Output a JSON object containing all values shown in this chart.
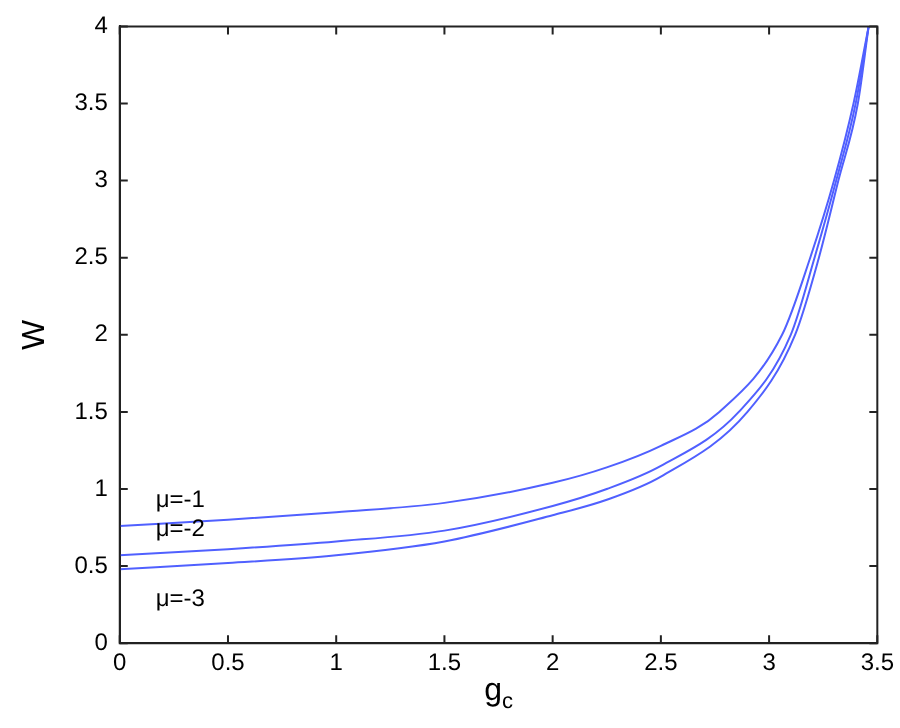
{
  "chart_data": {
    "type": "line",
    "xlabel": "g$_{c}$",
    "ylabel": "W",
    "series": [
      {
        "name": "μ=-1",
        "color": "#5060ff",
        "x": [
          0,
          0.5,
          1,
          1.5,
          2,
          2.25,
          2.5,
          2.77,
          3.06,
          3.19,
          3.3,
          3.39,
          3.46
        ],
        "values": [
          0.76,
          0.8,
          0.85,
          0.91,
          1.04,
          1.14,
          1.28,
          1.5,
          2,
          2.5,
          3,
          3.5,
          4
        ]
      },
      {
        "name": "μ=-2",
        "color": "#5060ff",
        "x": [
          0,
          0.5,
          1,
          1.5,
          2,
          2.25,
          2.5,
          2.86,
          3.1,
          3.21,
          3.31,
          3.4,
          3.46
        ],
        "values": [
          0.57,
          0.61,
          0.66,
          0.73,
          0.89,
          1.0,
          1.15,
          1.5,
          2,
          2.5,
          3,
          3.5,
          4
        ]
      },
      {
        "name": "μ=-3",
        "color": "#5060ff",
        "x": [
          0,
          0.5,
          1,
          1.5,
          2,
          2.25,
          2.5,
          2.9,
          3.12,
          3.23,
          3.32,
          3.41,
          3.46
        ],
        "values": [
          0.48,
          0.52,
          0.57,
          0.66,
          0.83,
          0.93,
          1.08,
          1.5,
          2,
          2.5,
          3,
          3.5,
          4
        ]
      }
    ],
    "xlim": [
      0,
      3.5
    ],
    "xticks": [
      0,
      0.5,
      1,
      1.5,
      2,
      2.5,
      3,
      3.5
    ],
    "ylim": [
      0,
      4
    ],
    "yticks": [
      0,
      0.5,
      1,
      1.5,
      2,
      2.5,
      3,
      3.5,
      4
    ],
    "grid": false,
    "legend": false,
    "marker": "none",
    "line_style": "solid"
  }
}
